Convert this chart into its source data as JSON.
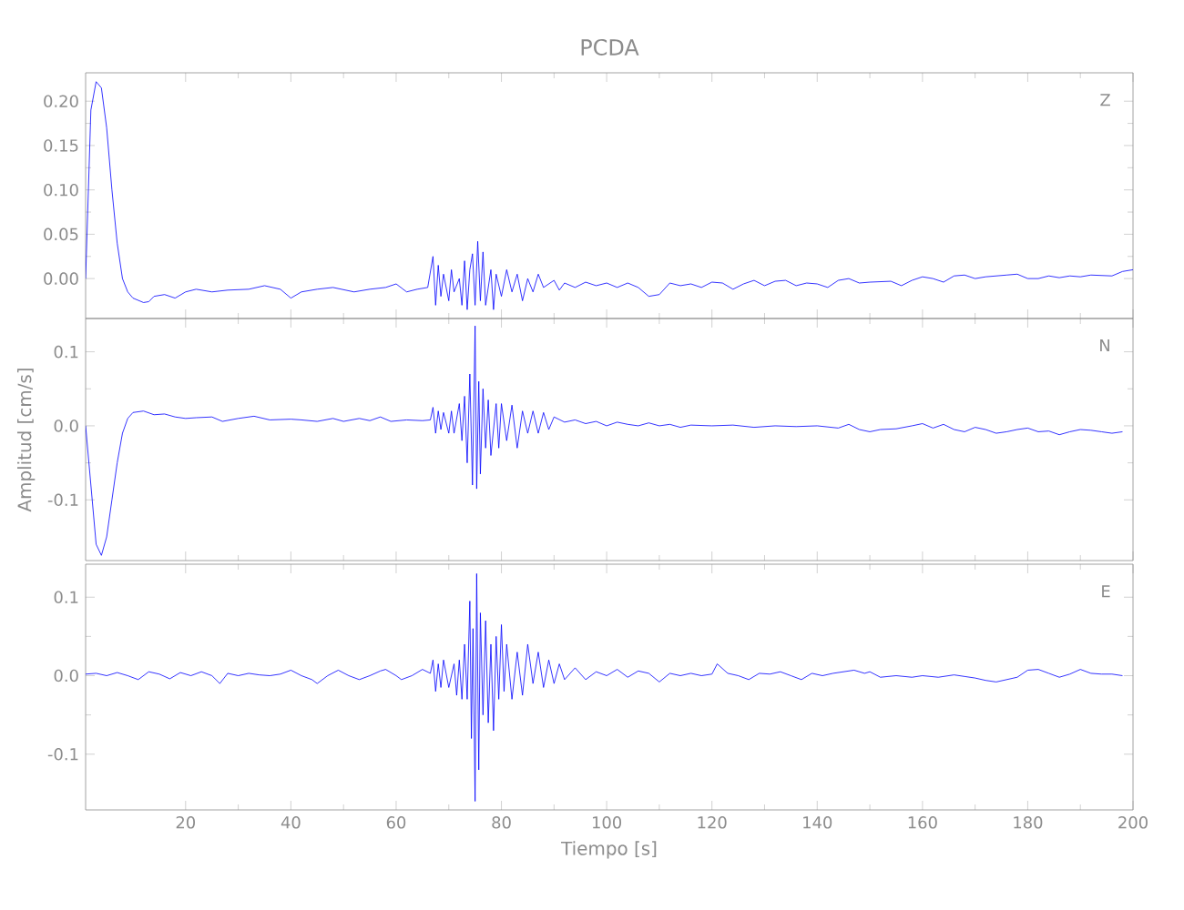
{
  "chart_data": [
    {
      "type": "line",
      "title": "PCDA",
      "annotations": [
        "Z"
      ],
      "xlim": [
        1,
        200
      ],
      "ylim": [
        -0.045,
        0.232
      ],
      "tick_labels": "y",
      "grid": false,
      "marker": "none",
      "line_style": "solid",
      "xticks": [
        20,
        40,
        60,
        80,
        100,
        120,
        140,
        160,
        180,
        200
      ],
      "yticks": [
        {
          "value": 0,
          "label": "0.00"
        },
        {
          "value": 0.05,
          "label": "0.05"
        },
        {
          "value": 0.1,
          "label": "0.10"
        },
        {
          "value": 0.15,
          "label": "0.15"
        },
        {
          "value": 0.2,
          "label": "0.20"
        }
      ],
      "series": [
        {
          "color": "#0000ff",
          "x": [
            1,
            2,
            3,
            4,
            5,
            6,
            7,
            8,
            9,
            10,
            12,
            13,
            14,
            16,
            18,
            20,
            22,
            25,
            28,
            32,
            35,
            38,
            40,
            42,
            45,
            48,
            52,
            55,
            58,
            60,
            62,
            64,
            66,
            67,
            67.5,
            68,
            68.5,
            69,
            70,
            70.5,
            71,
            72,
            72.5,
            73,
            73.5,
            74,
            74.5,
            75,
            75.5,
            76,
            76.5,
            77,
            78,
            78.5,
            79,
            80,
            81,
            82,
            83,
            84,
            85,
            86,
            87,
            88,
            90,
            91,
            92,
            94,
            96,
            98,
            100,
            102,
            104,
            106,
            108,
            110,
            112,
            114,
            116,
            118,
            120,
            122,
            124,
            126,
            128,
            130,
            132,
            134,
            136,
            138,
            140,
            142,
            144,
            146,
            148,
            150,
            154,
            156,
            158,
            160,
            162,
            164,
            166,
            168,
            170,
            172,
            176,
            178,
            180,
            182,
            184,
            186,
            188,
            190,
            192,
            196,
            198,
            200
          ],
          "values": [
            0.0,
            0.19,
            0.222,
            0.215,
            0.17,
            0.1,
            0.04,
            0.0,
            -0.015,
            -0.022,
            -0.027,
            -0.026,
            -0.02,
            -0.018,
            -0.022,
            -0.015,
            -0.012,
            -0.015,
            -0.013,
            -0.012,
            -0.008,
            -0.012,
            -0.022,
            -0.015,
            -0.012,
            -0.01,
            -0.015,
            -0.012,
            -0.01,
            -0.006,
            -0.015,
            -0.012,
            -0.01,
            0.025,
            -0.03,
            0.015,
            -0.02,
            0.005,
            -0.025,
            0.01,
            -0.015,
            0.0,
            -0.03,
            0.02,
            -0.035,
            0.01,
            0.028,
            -0.03,
            0.042,
            -0.025,
            0.03,
            -0.03,
            0.01,
            -0.035,
            0.005,
            -0.02,
            0.01,
            -0.015,
            0.005,
            -0.025,
            0.0,
            -0.015,
            0.005,
            -0.01,
            -0.002,
            -0.013,
            -0.005,
            -0.01,
            -0.004,
            -0.008,
            -0.005,
            -0.01,
            -0.005,
            -0.01,
            -0.02,
            -0.018,
            -0.005,
            -0.008,
            -0.006,
            -0.01,
            -0.004,
            -0.005,
            -0.012,
            -0.006,
            -0.002,
            -0.008,
            -0.003,
            -0.002,
            -0.008,
            -0.005,
            -0.006,
            -0.01,
            -0.002,
            0.0,
            -0.005,
            -0.004,
            -0.003,
            -0.008,
            -0.002,
            0.002,
            0.0,
            -0.004,
            0.003,
            0.004,
            0.0,
            0.002,
            0.004,
            0.005,
            0.0,
            0.0,
            0.003,
            0.001,
            0.003,
            0.002,
            0.004,
            0.003,
            0.008,
            0.01
          ]
        }
      ]
    },
    {
      "type": "line",
      "ylabel": "Amplitud [cm/s]",
      "annotations": [
        "N"
      ],
      "xlim": [
        1,
        200
      ],
      "ylim": [
        -0.182,
        0.145
      ],
      "tick_labels": "y",
      "grid": false,
      "marker": "none",
      "line_style": "solid",
      "xticks": [
        20,
        40,
        60,
        80,
        100,
        120,
        140,
        160,
        180,
        200
      ],
      "yticks": [
        {
          "value": -0.1,
          "label": "-0.1"
        },
        {
          "value": 0,
          "label": "0.0"
        },
        {
          "value": 0.1,
          "label": "0.1"
        }
      ],
      "series": [
        {
          "color": "#0000ff",
          "x": [
            1,
            2,
            3,
            4,
            5,
            6,
            7,
            8,
            9,
            10,
            12,
            14,
            16,
            18,
            20,
            22,
            25,
            27,
            30,
            33,
            36,
            40,
            42,
            45,
            48,
            50,
            53,
            55,
            57,
            59,
            62,
            65,
            66.5,
            67,
            67.5,
            68,
            68.5,
            69,
            70,
            70.5,
            71,
            72,
            72.5,
            73,
            73.5,
            74,
            74.5,
            75,
            75.3,
            75.7,
            76,
            76.5,
            77,
            77.5,
            78,
            79,
            79.5,
            80,
            81,
            82,
            83,
            84,
            85,
            86,
            87,
            88,
            89,
            90,
            92,
            94,
            96,
            98,
            100,
            102,
            104,
            106,
            108,
            110,
            112,
            114,
            116,
            120,
            124,
            128,
            132,
            136,
            140,
            144,
            146,
            148,
            150,
            152,
            155,
            158,
            160,
            162,
            164,
            166,
            168,
            170,
            172,
            174,
            176,
            178,
            180,
            182,
            184,
            186,
            188,
            190,
            192,
            194,
            196,
            198
          ],
          "values": [
            0.0,
            -0.08,
            -0.16,
            -0.175,
            -0.15,
            -0.1,
            -0.05,
            -0.01,
            0.01,
            0.018,
            0.02,
            0.015,
            0.016,
            0.012,
            0.01,
            0.011,
            0.012,
            0.006,
            0.01,
            0.013,
            0.008,
            0.009,
            0.008,
            0.006,
            0.01,
            0.006,
            0.01,
            0.007,
            0.012,
            0.006,
            0.008,
            0.007,
            0.008,
            0.025,
            -0.01,
            0.02,
            -0.005,
            0.018,
            -0.01,
            0.02,
            -0.01,
            0.03,
            -0.02,
            0.04,
            -0.05,
            0.07,
            -0.08,
            0.135,
            -0.085,
            0.06,
            -0.065,
            0.05,
            -0.03,
            0.035,
            -0.04,
            0.03,
            -0.03,
            0.03,
            -0.02,
            0.028,
            -0.03,
            0.02,
            -0.01,
            0.02,
            -0.01,
            0.018,
            -0.005,
            0.012,
            0.005,
            0.008,
            0.003,
            0.006,
            0.0,
            0.005,
            0.002,
            0.0,
            0.004,
            0.0,
            0.002,
            -0.002,
            0.001,
            0.0,
            0.001,
            -0.002,
            0.0,
            -0.001,
            0.0,
            -0.003,
            0.002,
            -0.005,
            -0.008,
            -0.005,
            -0.004,
            0.0,
            0.003,
            -0.003,
            0.002,
            -0.005,
            -0.008,
            -0.002,
            -0.005,
            -0.01,
            -0.008,
            -0.005,
            -0.003,
            -0.008,
            -0.007,
            -0.012,
            -0.008,
            -0.005,
            -0.006,
            -0.008,
            -0.01,
            -0.008
          ]
        }
      ]
    },
    {
      "type": "line",
      "xlabel": "Tiempo [s]",
      "annotations": [
        "E"
      ],
      "xlim": [
        1,
        200
      ],
      "ylim": [
        -0.171,
        0.142
      ],
      "grid": false,
      "marker": "none",
      "line_style": "solid",
      "xticks": [
        20,
        40,
        60,
        80,
        100,
        120,
        140,
        160,
        180,
        200
      ],
      "yticks": [
        {
          "value": -0.1,
          "label": "-0.1"
        },
        {
          "value": 0,
          "label": "0.0"
        },
        {
          "value": 0.1,
          "label": "0.1"
        }
      ],
      "series": [
        {
          "color": "#0000ff",
          "x": [
            1,
            3,
            5,
            7,
            9,
            11,
            13,
            15,
            17,
            19,
            21,
            23,
            25,
            26.5,
            28,
            30,
            32,
            34,
            36,
            38,
            40,
            42,
            44,
            45,
            47,
            49,
            51,
            53,
            55,
            57,
            58,
            60,
            61,
            63,
            65,
            66.5,
            67,
            67.5,
            68,
            68.5,
            69,
            70,
            71,
            71.5,
            72,
            72.5,
            73,
            73.5,
            74,
            74.3,
            74.6,
            75,
            75.3,
            75.7,
            76,
            76.5,
            77,
            77.5,
            78,
            78.5,
            79,
            79.5,
            80,
            80.5,
            81,
            82,
            83,
            84,
            85,
            86,
            87,
            88,
            89,
            90,
            91,
            92,
            94,
            96,
            98,
            100,
            102,
            104,
            106,
            108,
            110,
            112,
            114,
            116,
            118,
            120,
            121,
            123,
            125,
            127,
            129,
            131,
            133,
            135,
            137,
            139,
            141,
            143,
            145,
            147,
            149,
            150,
            152,
            155,
            158,
            160,
            163,
            166,
            168,
            170,
            172,
            174,
            176,
            178,
            180,
            182,
            184,
            186,
            188,
            190,
            192,
            194,
            196,
            198
          ],
          "values": [
            0.002,
            0.003,
            0.0,
            0.004,
            0.0,
            -0.005,
            0.005,
            0.002,
            -0.004,
            0.004,
            0.0,
            0.005,
            0.0,
            -0.01,
            0.003,
            0.0,
            0.003,
            0.001,
            0.0,
            0.002,
            0.007,
            0.0,
            -0.005,
            -0.01,
            0.0,
            0.007,
            0.0,
            -0.005,
            0.0,
            0.006,
            0.008,
            0.0,
            -0.005,
            0.0,
            0.008,
            0.003,
            0.02,
            -0.02,
            0.015,
            -0.015,
            0.02,
            -0.015,
            0.015,
            -0.025,
            0.02,
            -0.03,
            0.04,
            -0.03,
            0.095,
            -0.08,
            0.06,
            -0.16,
            0.13,
            -0.12,
            0.08,
            -0.05,
            0.07,
            -0.06,
            0.04,
            -0.07,
            0.05,
            -0.03,
            0.065,
            -0.02,
            0.04,
            -0.03,
            0.03,
            -0.025,
            0.04,
            -0.01,
            0.03,
            -0.015,
            0.02,
            -0.01,
            0.015,
            -0.005,
            0.01,
            -0.005,
            0.005,
            0.0,
            0.008,
            -0.002,
            0.006,
            0.003,
            -0.008,
            0.003,
            0.0,
            0.003,
            0.0,
            0.002,
            0.015,
            0.003,
            0.0,
            -0.005,
            0.003,
            0.002,
            0.005,
            0.0,
            -0.005,
            0.003,
            0.0,
            0.003,
            0.005,
            0.007,
            0.003,
            0.005,
            -0.002,
            0.0,
            -0.002,
            0.0,
            -0.002,
            0.001,
            -0.001,
            -0.003,
            -0.006,
            -0.008,
            -0.005,
            -0.002,
            0.007,
            0.008,
            0.003,
            -0.002,
            0.002,
            0.008,
            0.003,
            0.002,
            0.002,
            0.0
          ]
        }
      ]
    }
  ]
}
